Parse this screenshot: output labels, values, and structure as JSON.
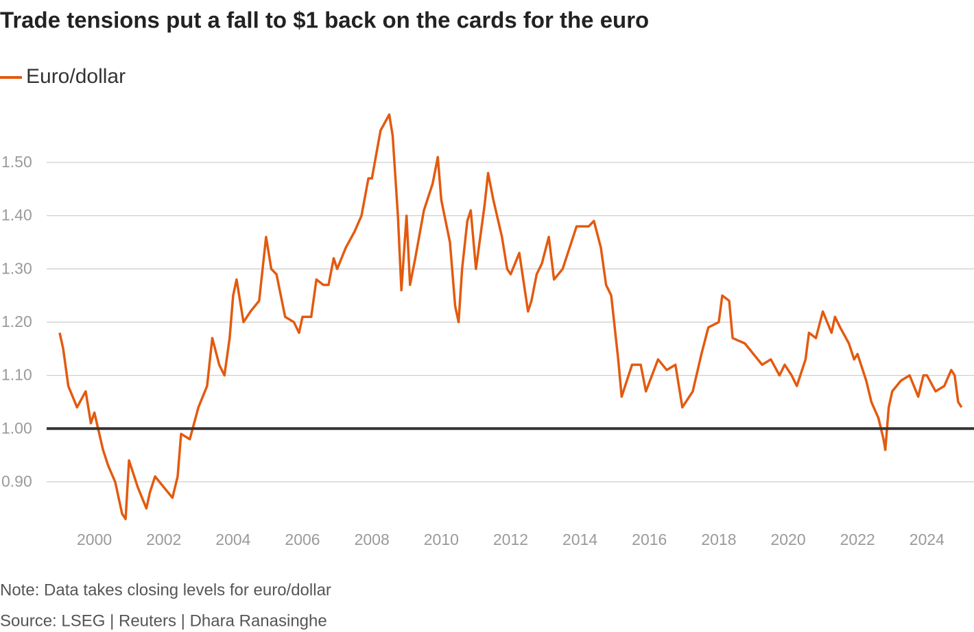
{
  "chart_data": {
    "type": "line",
    "title": "Trade tensions put a fall to $1 back on the cards for the euro",
    "note": "Note: Data takes closing levels for euro/dollar",
    "source": "Source: LSEG | Reuters | Dhara Ranasinghe",
    "x": [
      1999.0,
      1999.1,
      1999.25,
      1999.5,
      1999.75,
      1999.9,
      2000.0,
      2000.25,
      2000.4,
      2000.6,
      2000.8,
      2000.9,
      2001.0,
      2001.25,
      2001.5,
      2001.6,
      2001.75,
      2002.0,
      2002.25,
      2002.4,
      2002.5,
      2002.75,
      2003.0,
      2003.25,
      2003.4,
      2003.6,
      2003.75,
      2003.9,
      2004.0,
      2004.1,
      2004.3,
      2004.5,
      2004.75,
      2004.95,
      2005.1,
      2005.25,
      2005.5,
      2005.75,
      2005.9,
      2006.0,
      2006.25,
      2006.4,
      2006.6,
      2006.75,
      2006.9,
      2007.0,
      2007.25,
      2007.5,
      2007.7,
      2007.9,
      2008.0,
      2008.25,
      2008.5,
      2008.6,
      2008.75,
      2008.85,
      2009.0,
      2009.1,
      2009.25,
      2009.5,
      2009.75,
      2009.9,
      2010.0,
      2010.25,
      2010.4,
      2010.5,
      2010.6,
      2010.75,
      2010.85,
      2011.0,
      2011.25,
      2011.35,
      2011.5,
      2011.75,
      2011.9,
      2012.0,
      2012.25,
      2012.5,
      2012.6,
      2012.75,
      2012.9,
      2013.1,
      2013.25,
      2013.5,
      2013.75,
      2013.9,
      2014.25,
      2014.4,
      2014.6,
      2014.75,
      2014.9,
      2015.1,
      2015.2,
      2015.5,
      2015.75,
      2015.9,
      2016.25,
      2016.5,
      2016.75,
      2016.95,
      2017.25,
      2017.5,
      2017.7,
      2018.0,
      2018.1,
      2018.3,
      2018.4,
      2018.75,
      2019.0,
      2019.25,
      2019.5,
      2019.75,
      2019.9,
      2020.1,
      2020.25,
      2020.5,
      2020.6,
      2020.8,
      2021.0,
      2021.25,
      2021.35,
      2021.5,
      2021.75,
      2021.9,
      2022.0,
      2022.25,
      2022.4,
      2022.6,
      2022.75,
      2022.8,
      2022.9,
      2023.0,
      2023.25,
      2023.5,
      2023.75,
      2023.9,
      2024.0,
      2024.25,
      2024.5,
      2024.7,
      2024.8,
      2024.9,
      2025.0
    ],
    "series": [
      {
        "name": "Euro/dollar",
        "color": "#e35a0f",
        "values": [
          1.18,
          1.15,
          1.08,
          1.04,
          1.07,
          1.01,
          1.03,
          0.96,
          0.93,
          0.9,
          0.84,
          0.83,
          0.94,
          0.89,
          0.85,
          0.88,
          0.91,
          0.89,
          0.87,
          0.91,
          0.99,
          0.98,
          1.04,
          1.08,
          1.17,
          1.12,
          1.1,
          1.17,
          1.25,
          1.28,
          1.2,
          1.22,
          1.24,
          1.36,
          1.3,
          1.29,
          1.21,
          1.2,
          1.18,
          1.21,
          1.21,
          1.28,
          1.27,
          1.27,
          1.32,
          1.3,
          1.34,
          1.37,
          1.4,
          1.47,
          1.47,
          1.56,
          1.59,
          1.55,
          1.4,
          1.26,
          1.4,
          1.27,
          1.32,
          1.41,
          1.46,
          1.51,
          1.43,
          1.35,
          1.23,
          1.2,
          1.3,
          1.39,
          1.41,
          1.3,
          1.42,
          1.48,
          1.43,
          1.36,
          1.3,
          1.29,
          1.33,
          1.22,
          1.24,
          1.29,
          1.31,
          1.36,
          1.28,
          1.3,
          1.35,
          1.38,
          1.38,
          1.39,
          1.34,
          1.27,
          1.25,
          1.13,
          1.06,
          1.12,
          1.12,
          1.07,
          1.13,
          1.11,
          1.12,
          1.04,
          1.07,
          1.14,
          1.19,
          1.2,
          1.25,
          1.24,
          1.17,
          1.16,
          1.14,
          1.12,
          1.13,
          1.1,
          1.12,
          1.1,
          1.08,
          1.13,
          1.18,
          1.17,
          1.22,
          1.18,
          1.21,
          1.19,
          1.16,
          1.13,
          1.14,
          1.09,
          1.05,
          1.02,
          0.98,
          0.96,
          1.04,
          1.07,
          1.09,
          1.1,
          1.06,
          1.1,
          1.1,
          1.07,
          1.08,
          1.11,
          1.1,
          1.05,
          1.04
        ]
      }
    ],
    "xlim": [
      1999,
      2025.1
    ],
    "xticks": [
      2000,
      2002,
      2004,
      2006,
      2008,
      2010,
      2012,
      2014,
      2016,
      2018,
      2020,
      2022,
      2024
    ],
    "ylim": [
      0.82,
      1.61
    ],
    "yticks": [
      {
        "value": 0.9,
        "label": "0.90"
      },
      {
        "value": 1.0,
        "label": "1.00"
      },
      {
        "value": 1.1,
        "label": "1.10"
      },
      {
        "value": 1.2,
        "label": "1.20"
      },
      {
        "value": 1.3,
        "label": "1.30"
      },
      {
        "value": 1.4,
        "label": "1.40"
      },
      {
        "value": 1.5,
        "label": "1.50"
      }
    ],
    "reference_line": 1,
    "grid": true
  }
}
